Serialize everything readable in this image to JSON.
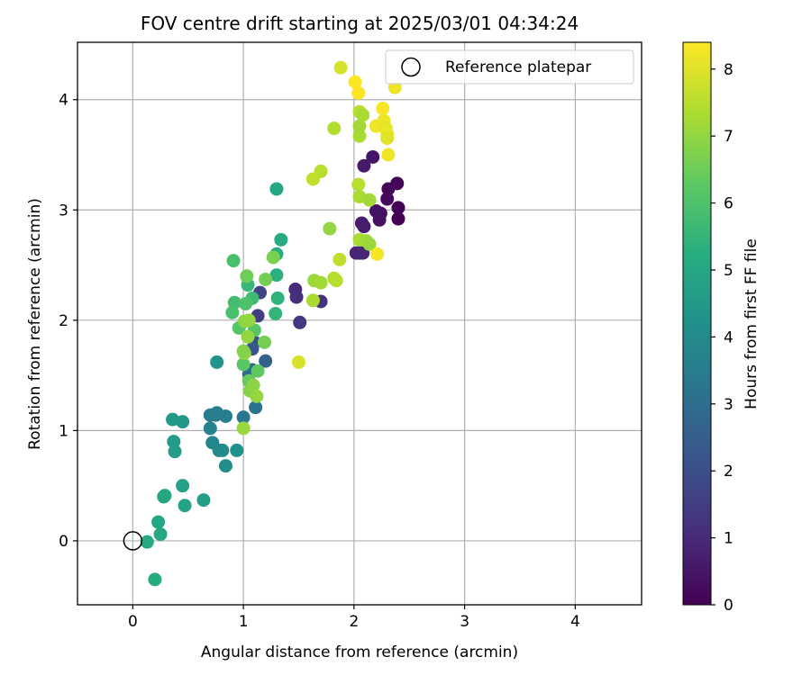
{
  "chart_data": {
    "type": "scatter",
    "title": "FOV centre drift starting at 2025/03/01 04:34:24",
    "xlabel": "Angular distance from reference (arcmin)",
    "ylabel": "Rotation from reference (arcmin)",
    "xlim": [
      -0.5,
      4.6
    ],
    "ylim": [
      -0.58,
      4.52
    ],
    "x_ticks": [
      0,
      1,
      2,
      3,
      4
    ],
    "y_ticks": [
      0,
      1,
      2,
      3,
      4
    ],
    "grid": true,
    "legend": {
      "placement": "top-right",
      "entries": [
        "Reference platepar"
      ]
    },
    "reference_point": {
      "name": "Reference platepar",
      "x": 0,
      "y": 0
    },
    "colorbar": {
      "label": "Hours from first FF file",
      "range": [
        0,
        8.4
      ],
      "ticks": [
        0,
        1,
        2,
        3,
        4,
        5,
        6,
        7,
        8
      ],
      "colormap": "viridis"
    },
    "points": [
      {
        "x": 2.4,
        "y": 2.92,
        "h": 0.0
      },
      {
        "x": 2.4,
        "y": 3.02,
        "h": 0.05
      },
      {
        "x": 2.39,
        "y": 3.24,
        "h": 0.1
      },
      {
        "x": 2.31,
        "y": 3.19,
        "h": 0.15
      },
      {
        "x": 2.3,
        "y": 3.1,
        "h": 0.2
      },
      {
        "x": 2.24,
        "y": 2.97,
        "h": 0.3
      },
      {
        "x": 2.23,
        "y": 2.91,
        "h": 0.35
      },
      {
        "x": 2.2,
        "y": 2.99,
        "h": 0.4
      },
      {
        "x": 2.17,
        "y": 3.48,
        "h": 0.5
      },
      {
        "x": 2.09,
        "y": 3.4,
        "h": 0.6
      },
      {
        "x": 2.07,
        "y": 2.88,
        "h": 0.65
      },
      {
        "x": 2.09,
        "y": 2.85,
        "h": 0.7
      },
      {
        "x": 2.05,
        "y": 2.61,
        "h": 0.8
      },
      {
        "x": 2.02,
        "y": 2.61,
        "h": 0.85
      },
      {
        "x": 2.08,
        "y": 2.61,
        "h": 0.9
      },
      {
        "x": 1.47,
        "y": 2.28,
        "h": 1.0
      },
      {
        "x": 1.48,
        "y": 2.21,
        "h": 1.1
      },
      {
        "x": 1.7,
        "y": 2.17,
        "h": 1.2
      },
      {
        "x": 1.51,
        "y": 1.98,
        "h": 1.3
      },
      {
        "x": 1.13,
        "y": 2.04,
        "h": 1.5
      },
      {
        "x": 1.15,
        "y": 2.25,
        "h": 1.7
      },
      {
        "x": 1.1,
        "y": 1.8,
        "h": 2.0
      },
      {
        "x": 1.08,
        "y": 1.74,
        "h": 2.3
      },
      {
        "x": 1.2,
        "y": 1.63,
        "h": 2.6
      },
      {
        "x": 1.08,
        "y": 1.55,
        "h": 2.8
      },
      {
        "x": 1.05,
        "y": 1.51,
        "h": 3.0
      },
      {
        "x": 1.11,
        "y": 1.21,
        "h": 3.2
      },
      {
        "x": 1.0,
        "y": 1.12,
        "h": 3.3
      },
      {
        "x": 0.75,
        "y": 1.14,
        "h": 3.4
      },
      {
        "x": 0.76,
        "y": 1.16,
        "h": 3.45
      },
      {
        "x": 0.7,
        "y": 1.14,
        "h": 3.5
      },
      {
        "x": 0.84,
        "y": 1.13,
        "h": 3.6
      },
      {
        "x": 0.7,
        "y": 1.02,
        "h": 3.7
      },
      {
        "x": 0.72,
        "y": 0.89,
        "h": 3.8
      },
      {
        "x": 0.78,
        "y": 0.82,
        "h": 3.9
      },
      {
        "x": 0.81,
        "y": 0.82,
        "h": 4.0
      },
      {
        "x": 0.84,
        "y": 0.68,
        "h": 4.1
      },
      {
        "x": 0.94,
        "y": 0.82,
        "h": 4.2
      },
      {
        "x": 0.76,
        "y": 1.62,
        "h": 4.3
      },
      {
        "x": 0.45,
        "y": 1.08,
        "h": 4.4
      },
      {
        "x": 0.36,
        "y": 1.1,
        "h": 4.5
      },
      {
        "x": 0.37,
        "y": 0.9,
        "h": 4.55
      },
      {
        "x": 0.38,
        "y": 0.81,
        "h": 4.6
      },
      {
        "x": 0.64,
        "y": 0.37,
        "h": 4.7
      },
      {
        "x": 0.45,
        "y": 0.5,
        "h": 4.8
      },
      {
        "x": 0.47,
        "y": 0.32,
        "h": 4.85
      },
      {
        "x": 0.28,
        "y": 0.4,
        "h": 4.9
      },
      {
        "x": 0.29,
        "y": 0.41,
        "h": 4.95
      },
      {
        "x": 0.23,
        "y": 0.17,
        "h": 5.0
      },
      {
        "x": 0.25,
        "y": 0.06,
        "h": 5.05
      },
      {
        "x": 0.13,
        "y": -0.01,
        "h": 5.1
      },
      {
        "x": 0.2,
        "y": -0.35,
        "h": 5.15
      },
      {
        "x": 1.3,
        "y": 3.19,
        "h": 5.0
      },
      {
        "x": 1.34,
        "y": 2.73,
        "h": 5.1
      },
      {
        "x": 1.3,
        "y": 2.6,
        "h": 5.2
      },
      {
        "x": 1.3,
        "y": 2.41,
        "h": 5.3
      },
      {
        "x": 1.31,
        "y": 2.2,
        "h": 5.4
      },
      {
        "x": 1.29,
        "y": 2.06,
        "h": 5.5
      },
      {
        "x": 1.04,
        "y": 2.32,
        "h": 5.6
      },
      {
        "x": 1.08,
        "y": 2.2,
        "h": 5.7
      },
      {
        "x": 0.92,
        "y": 2.16,
        "h": 5.8
      },
      {
        "x": 0.9,
        "y": 2.07,
        "h": 5.9
      },
      {
        "x": 1.02,
        "y": 2.15,
        "h": 6.0
      },
      {
        "x": 0.96,
        "y": 1.93,
        "h": 6.1
      },
      {
        "x": 1.1,
        "y": 1.91,
        "h": 6.15
      },
      {
        "x": 1.0,
        "y": 1.6,
        "h": 6.2
      },
      {
        "x": 1.13,
        "y": 1.54,
        "h": 6.3
      },
      {
        "x": 1.05,
        "y": 1.45,
        "h": 6.4
      },
      {
        "x": 0.91,
        "y": 2.54,
        "h": 5.9
      },
      {
        "x": 1.03,
        "y": 2.4,
        "h": 6.5
      },
      {
        "x": 1.2,
        "y": 2.37,
        "h": 6.6
      },
      {
        "x": 1.27,
        "y": 2.57,
        "h": 6.7
      },
      {
        "x": 1.06,
        "y": 1.36,
        "h": 6.8
      },
      {
        "x": 1.09,
        "y": 1.41,
        "h": 6.9
      },
      {
        "x": 1.12,
        "y": 1.31,
        "h": 7.0
      },
      {
        "x": 1.0,
        "y": 1.02,
        "h": 7.1
      },
      {
        "x": 1.19,
        "y": 1.8,
        "h": 6.6
      },
      {
        "x": 1.01,
        "y": 1.7,
        "h": 7.0
      },
      {
        "x": 1.04,
        "y": 1.85,
        "h": 7.0
      },
      {
        "x": 1.01,
        "y": 1.99,
        "h": 6.9
      },
      {
        "x": 1.05,
        "y": 2.0,
        "h": 7.0
      },
      {
        "x": 1.0,
        "y": 1.72,
        "h": 6.8
      },
      {
        "x": 1.64,
        "y": 2.36,
        "h": 7.1
      },
      {
        "x": 1.7,
        "y": 2.34,
        "h": 7.2
      },
      {
        "x": 1.63,
        "y": 2.18,
        "h": 7.3
      },
      {
        "x": 1.82,
        "y": 2.38,
        "h": 7.4
      },
      {
        "x": 1.84,
        "y": 2.36,
        "h": 7.5
      },
      {
        "x": 1.87,
        "y": 2.55,
        "h": 7.6
      },
      {
        "x": 1.78,
        "y": 2.83,
        "h": 7.0
      },
      {
        "x": 1.5,
        "y": 1.62,
        "h": 7.9
      },
      {
        "x": 1.63,
        "y": 3.28,
        "h": 7.6
      },
      {
        "x": 1.7,
        "y": 3.35,
        "h": 7.5
      },
      {
        "x": 1.82,
        "y": 3.74,
        "h": 7.4
      },
      {
        "x": 2.04,
        "y": 3.23,
        "h": 7.5
      },
      {
        "x": 2.05,
        "y": 3.12,
        "h": 7.3
      },
      {
        "x": 2.14,
        "y": 3.09,
        "h": 7.2
      },
      {
        "x": 2.05,
        "y": 2.73,
        "h": 7.3
      },
      {
        "x": 2.11,
        "y": 2.72,
        "h": 7.2
      },
      {
        "x": 2.14,
        "y": 2.69,
        "h": 7.1
      },
      {
        "x": 2.05,
        "y": 3.67,
        "h": 7.3
      },
      {
        "x": 2.05,
        "y": 3.76,
        "h": 7.2
      },
      {
        "x": 2.05,
        "y": 3.89,
        "h": 7.5
      },
      {
        "x": 2.08,
        "y": 3.86,
        "h": 7.3
      },
      {
        "x": 1.88,
        "y": 4.29,
        "h": 7.9
      },
      {
        "x": 2.21,
        "y": 2.6,
        "h": 8.3
      },
      {
        "x": 2.2,
        "y": 3.76,
        "h": 8.2
      },
      {
        "x": 2.26,
        "y": 3.92,
        "h": 8.3
      },
      {
        "x": 2.27,
        "y": 3.81,
        "h": 8.2
      },
      {
        "x": 2.29,
        "y": 3.74,
        "h": 8.1
      },
      {
        "x": 2.3,
        "y": 3.69,
        "h": 8.2
      },
      {
        "x": 2.3,
        "y": 3.65,
        "h": 8.0
      },
      {
        "x": 2.31,
        "y": 3.5,
        "h": 8.2
      },
      {
        "x": 2.37,
        "y": 4.11,
        "h": 8.2
      },
      {
        "x": 2.01,
        "y": 4.16,
        "h": 8.4
      },
      {
        "x": 2.04,
        "y": 4.06,
        "h": 8.4
      }
    ]
  }
}
